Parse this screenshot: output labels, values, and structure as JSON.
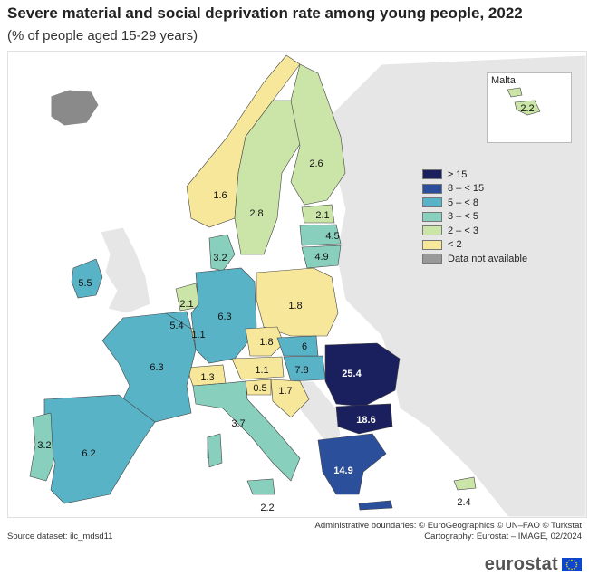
{
  "title": "Severe material and social deprivation rate among young people, 2022",
  "subtitle": "(% of people aged 15-29 years)",
  "inset": {
    "title": "Malta",
    "value": "2.2"
  },
  "legend": [
    {
      "label": "≥ 15",
      "color": "#1a1f5e"
    },
    {
      "label": "8 – < 15",
      "color": "#2c4f9c"
    },
    {
      "label": "5 – < 8",
      "color": "#59b3c6"
    },
    {
      "label": "3 – < 5",
      "color": "#88cfbd"
    },
    {
      "label": "2 – < 3",
      "color": "#cbe5a8"
    },
    {
      "label": "< 2",
      "color": "#f6e79a"
    },
    {
      "label": "Data not available",
      "color": "#999999"
    }
  ],
  "values": {
    "ireland": "5.5",
    "norway": "1.6",
    "sweden": "2.8",
    "finland": "2.6",
    "estonia": "2.1",
    "latvia": "4.5",
    "lithuania": "4.9",
    "denmark": "3.2",
    "netherlands": "2.1",
    "belgium": "5.4",
    "luxembourg": "1.1",
    "germany": "6.3",
    "poland": "1.8",
    "czechia": "1.8",
    "slovakia": "6",
    "austria": "1.1",
    "hungary": "7.8",
    "slovenia": "0.5",
    "croatia": "1.7",
    "switzerland": "1.3",
    "france": "6.3",
    "italy": "3.7",
    "spain": "6.2",
    "portugal": "3.2",
    "romania": "25.4",
    "bulgaria": "18.6",
    "greece": "14.9",
    "cyprus": "2.4",
    "malta_south": "2.2"
  },
  "footer": {
    "source": "Source dataset: ilc_mdsd11",
    "admin": "Administrative boundaries: © EuroGeographics © UN–FAO © Turkstat",
    "cartography": "Cartography: Eurostat – IMAGE, 02/2024",
    "logo": "eurostat"
  }
}
